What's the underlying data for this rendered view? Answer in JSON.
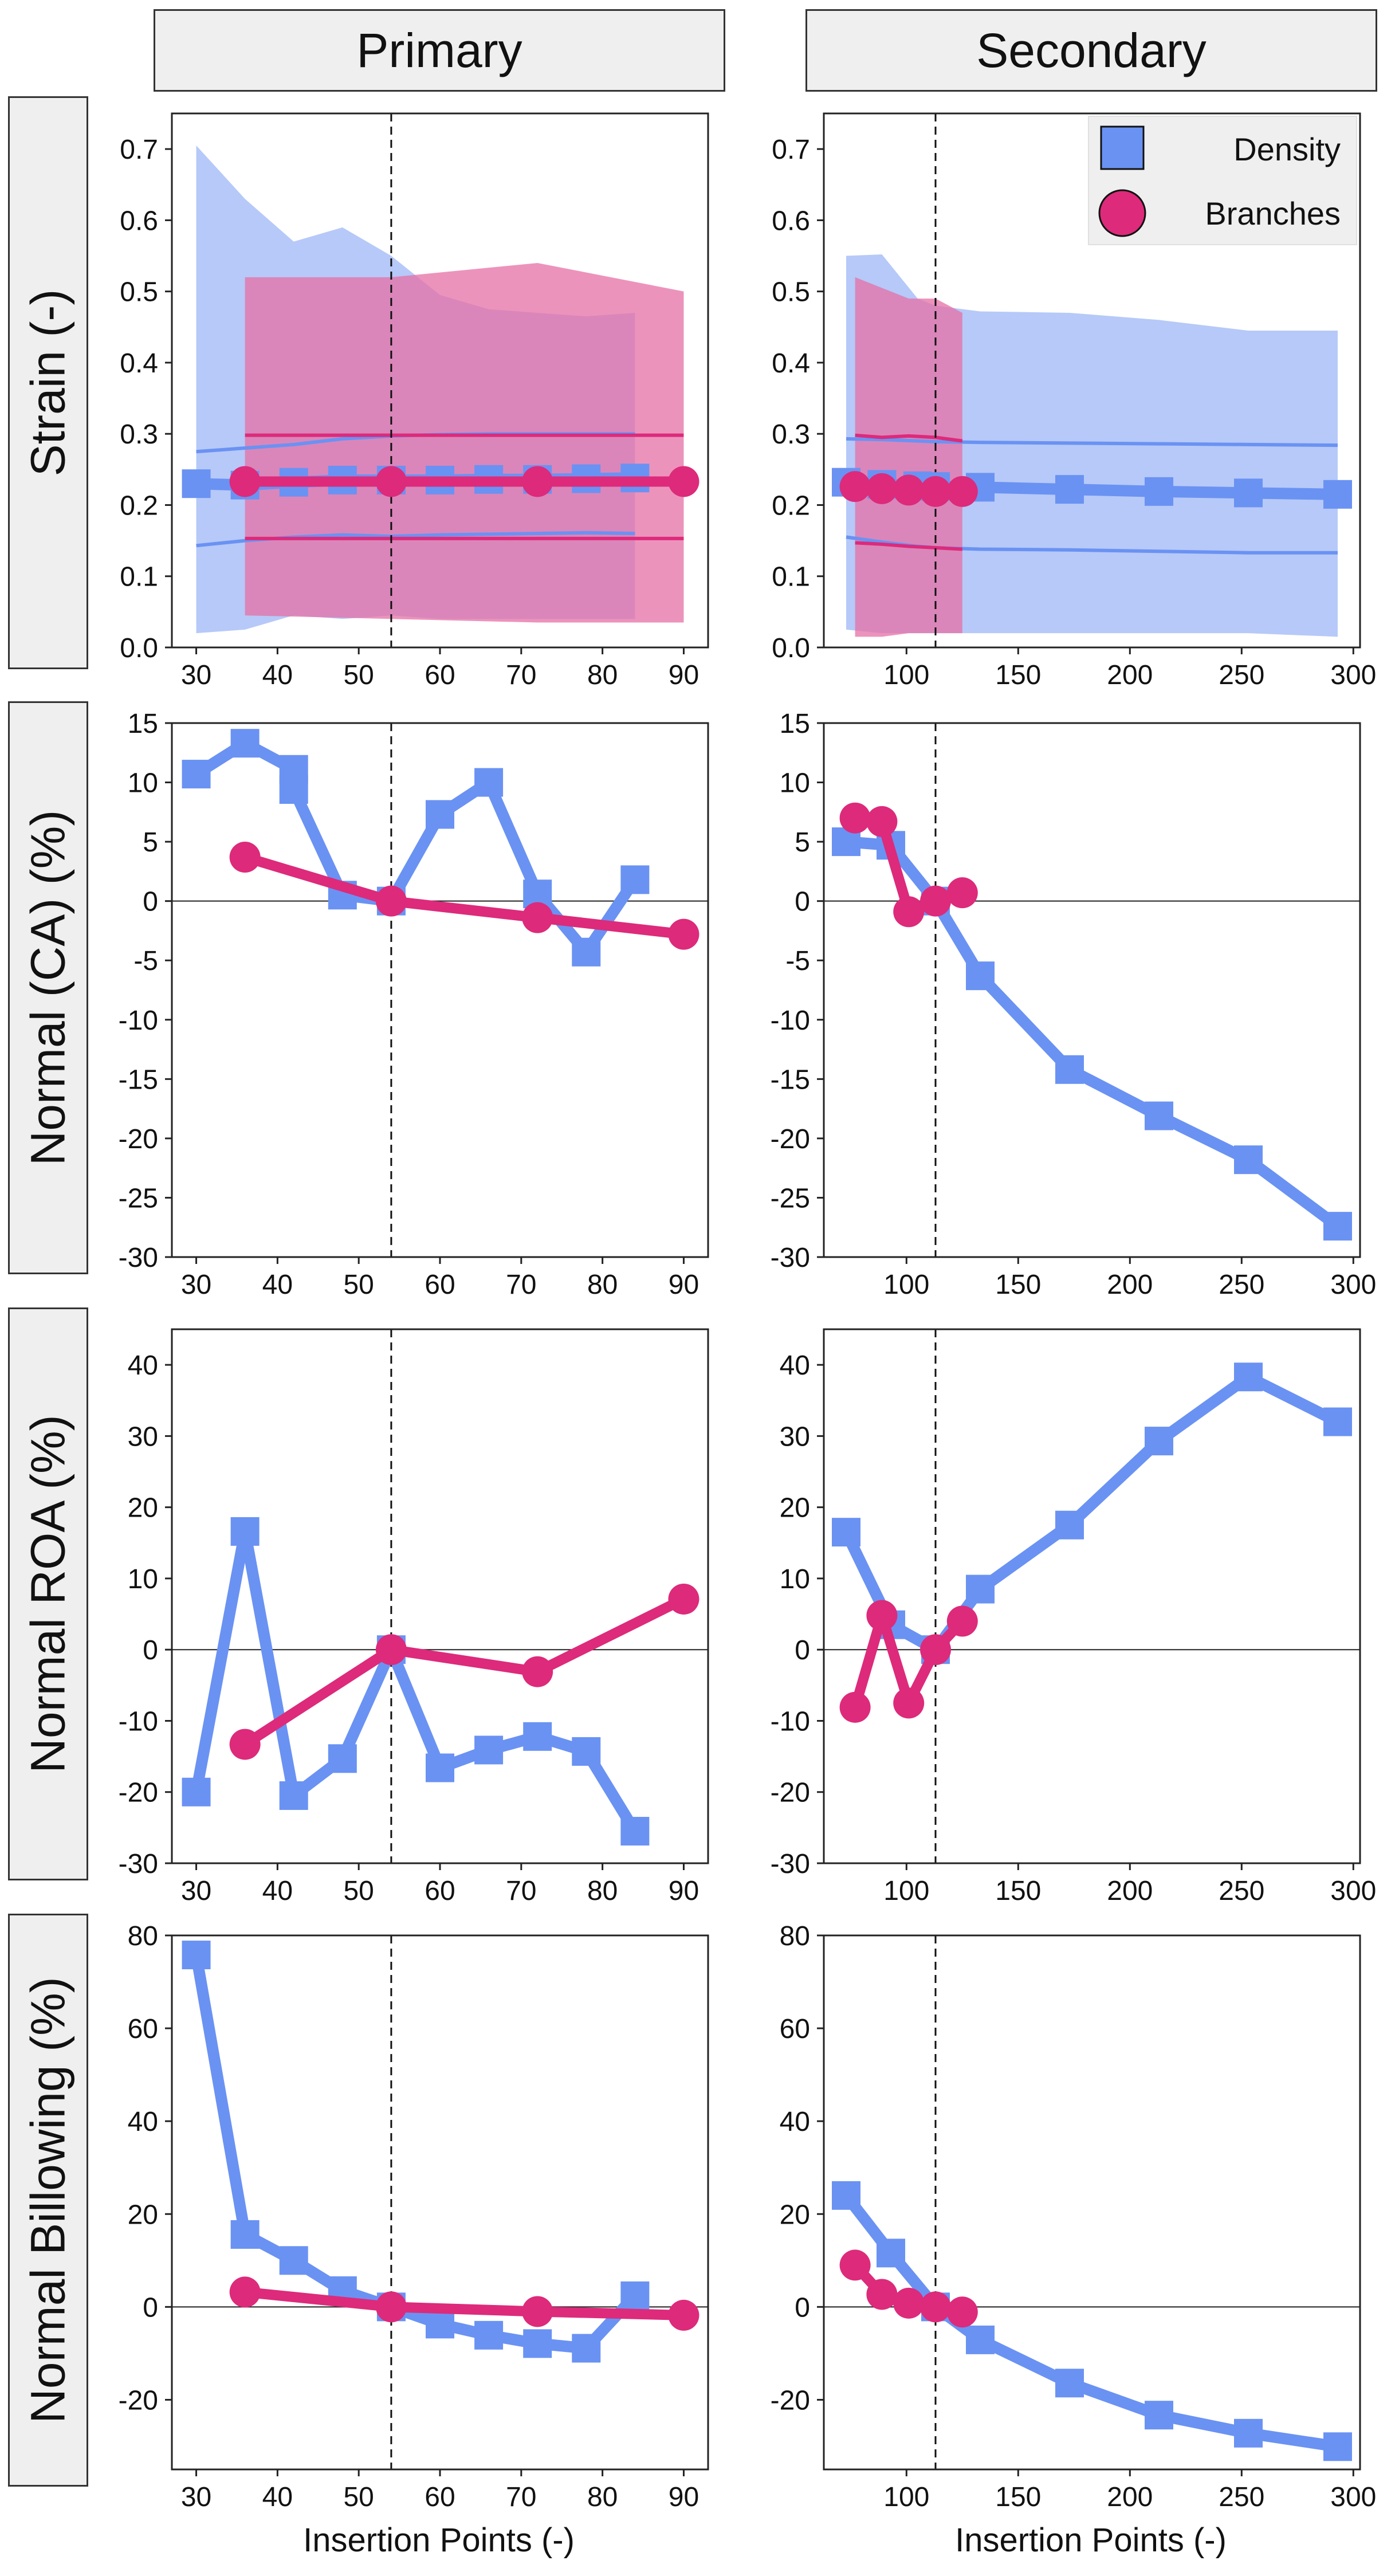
{
  "column_headers": [
    "Primary",
    "Secondary"
  ],
  "row_labels": [
    "Strain (-)",
    "Normal (CA) (%)",
    "Normal ROA (%)",
    "Normal Billowing (%)"
  ],
  "x_axis_label": "Insertion Points (-)",
  "legend": {
    "density": "Density",
    "branches": "Branches"
  },
  "colors": {
    "density": "#6a92f3",
    "branches": "#dd2a7b",
    "density_band": "#a9bff7",
    "branches_band": "#e56fa5",
    "overlap": "#c06bb9"
  },
  "chart_data": [
    {
      "type": "line",
      "row": 0,
      "col": 0,
      "title": "Primary",
      "ylabel": "Strain (-)",
      "xlabel": "",
      "xlim": [
        27,
        93
      ],
      "ylim": [
        0,
        0.75
      ],
      "xticks": [
        30,
        40,
        50,
        60,
        70,
        80,
        90
      ],
      "yticks": [
        0.0,
        0.1,
        0.2,
        0.3,
        0.4,
        0.5,
        0.6,
        0.7
      ],
      "ytick_labels": [
        "0.0",
        "0.1",
        "0.2",
        "0.3",
        "0.4",
        "0.5",
        "0.6",
        "0.7"
      ],
      "vline": 54,
      "hline": null,
      "series": [
        {
          "name": "Density",
          "x": [
            30,
            36,
            42,
            48,
            54,
            60,
            66,
            72,
            78,
            84
          ],
          "y": [
            0.23,
            0.228,
            0.232,
            0.235,
            0.235,
            0.235,
            0.236,
            0.236,
            0.237,
            0.238
          ],
          "band": {
            "upper": [
              0.705,
              0.63,
              0.57,
              0.59,
              0.55,
              0.495,
              0.475,
              0.47,
              0.465,
              0.47
            ],
            "lower": [
              0.02,
              0.025,
              0.045,
              0.04,
              0.045,
              0.04,
              0.04,
              0.04,
              0.04,
              0.04
            ],
            "std_upper": [
              0.275,
              0.28,
              0.285,
              0.293,
              0.297,
              0.299,
              0.3,
              0.3,
              0.3,
              0.3
            ],
            "std_lower": [
              0.143,
              0.15,
              0.155,
              0.158,
              0.156,
              0.158,
              0.159,
              0.16,
              0.161,
              0.16
            ]
          }
        },
        {
          "name": "Branches",
          "x": [
            36,
            54,
            72,
            90
          ],
          "y": [
            0.233,
            0.233,
            0.233,
            0.233
          ],
          "band": {
            "upper": [
              0.52,
              0.52,
              0.54,
              0.5
            ],
            "lower": [
              0.045,
              0.04,
              0.035,
              0.035
            ],
            "std_upper": [
              0.298,
              0.298,
              0.298,
              0.298
            ],
            "std_lower": [
              0.153,
              0.153,
              0.153,
              0.153
            ]
          }
        }
      ]
    },
    {
      "type": "line",
      "row": 0,
      "col": 1,
      "title": "Secondary",
      "ylabel": "",
      "xlabel": "",
      "xlim": [
        63,
        303
      ],
      "ylim": [
        0,
        0.75
      ],
      "xticks": [
        100,
        150,
        200,
        250,
        300
      ],
      "yticks": [
        0.0,
        0.1,
        0.2,
        0.3,
        0.4,
        0.5,
        0.6,
        0.7
      ],
      "ytick_labels": [
        "0.0",
        "0.1",
        "0.2",
        "0.3",
        "0.4",
        "0.5",
        "0.6",
        "0.7"
      ],
      "vline": 113,
      "hline": null,
      "legend": true,
      "series": [
        {
          "name": "Density",
          "x": [
            73,
            89,
            105,
            113,
            133,
            173,
            213,
            253,
            293
          ],
          "y": [
            0.232,
            0.229,
            0.227,
            0.226,
            0.225,
            0.222,
            0.219,
            0.217,
            0.215
          ],
          "band": {
            "upper": [
              0.55,
              0.552,
              0.49,
              0.48,
              0.472,
              0.47,
              0.46,
              0.445,
              0.445
            ],
            "lower": [
              0.025,
              0.02,
              0.02,
              0.02,
              0.02,
              0.02,
              0.02,
              0.02,
              0.015
            ],
            "std_upper": [
              0.293,
              0.292,
              0.29,
              0.289,
              0.288,
              0.287,
              0.286,
              0.285,
              0.284
            ],
            "std_lower": [
              0.155,
              0.148,
              0.142,
              0.14,
              0.138,
              0.137,
              0.135,
              0.133,
              0.133
            ]
          }
        },
        {
          "name": "Branches",
          "x": [
            77,
            89,
            101,
            113,
            125
          ],
          "y": [
            0.226,
            0.223,
            0.221,
            0.219,
            0.219
          ],
          "band": {
            "upper": [
              0.52,
              0.505,
              0.49,
              0.49,
              0.47
            ],
            "lower": [
              0.015,
              0.015,
              0.02,
              0.02,
              0.02
            ],
            "std_upper": [
              0.298,
              0.295,
              0.297,
              0.295,
              0.29
            ],
            "std_lower": [
              0.147,
              0.145,
              0.142,
              0.14,
              0.138
            ]
          }
        }
      ]
    },
    {
      "type": "line",
      "row": 1,
      "col": 0,
      "ylabel": "Normal (CA) (%)",
      "xlabel": "",
      "xlim": [
        27,
        93
      ],
      "ylim": [
        -30,
        15
      ],
      "xticks": [
        30,
        40,
        50,
        60,
        70,
        80,
        90
      ],
      "yticks": [
        -30,
        -25,
        -20,
        -15,
        -10,
        -5,
        0,
        5,
        10,
        15
      ],
      "ytick_labels": [
        "-30",
        "-25",
        "-20",
        "-15",
        "-10",
        "-5",
        "0",
        "5",
        "10",
        "15"
      ],
      "vline": 54,
      "hline": 0,
      "series": [
        {
          "name": "Density",
          "x": [
            30,
            36,
            42,
            42,
            48,
            54,
            60,
            66,
            72,
            78,
            84
          ],
          "y": [
            10.7,
            13.3,
            11.1,
            9.4,
            0.5,
            0,
            7.3,
            10,
            0.6,
            -4.3,
            1.8
          ]
        },
        {
          "name": "Branches",
          "x": [
            36,
            54,
            72,
            90
          ],
          "y": [
            3.7,
            0,
            -1.4,
            -2.8
          ]
        }
      ]
    },
    {
      "type": "line",
      "row": 1,
      "col": 1,
      "ylabel": "",
      "xlabel": "",
      "xlim": [
        63,
        303
      ],
      "ylim": [
        -30,
        15
      ],
      "xticks": [
        100,
        150,
        200,
        250,
        300
      ],
      "yticks": [
        -30,
        -25,
        -20,
        -15,
        -10,
        -5,
        0,
        5,
        10,
        15
      ],
      "ytick_labels": [
        "-30",
        "-25",
        "-20",
        "-15",
        "-10",
        "-5",
        "0",
        "5",
        "10",
        "15"
      ],
      "vline": 113,
      "hline": 0,
      "series": [
        {
          "name": "Density",
          "x": [
            73,
            93,
            113,
            133,
            173,
            213,
            253,
            293
          ],
          "y": [
            5,
            4.7,
            0,
            -6.3,
            -14.2,
            -18.1,
            -21.8,
            -27.4
          ]
        },
        {
          "name": "Branches",
          "x": [
            77,
            89,
            101,
            113,
            125
          ],
          "y": [
            7,
            6.7,
            -0.9,
            0,
            0.7
          ]
        }
      ]
    },
    {
      "type": "line",
      "row": 2,
      "col": 0,
      "ylabel": "Normal ROA (%)",
      "xlabel": "",
      "xlim": [
        27,
        93
      ],
      "ylim": [
        -30,
        45
      ],
      "xticks": [
        30,
        40,
        50,
        60,
        70,
        80,
        90
      ],
      "yticks": [
        -30,
        -20,
        -10,
        0,
        10,
        20,
        30,
        40
      ],
      "ytick_labels": [
        "-30",
        "-20",
        "-10",
        "0",
        "10",
        "20",
        "30",
        "40"
      ],
      "vline": 54,
      "hline": 0,
      "series": [
        {
          "name": "Density",
          "x": [
            30,
            36,
            42,
            48,
            54,
            60,
            66,
            72,
            78,
            84
          ],
          "y": [
            -20,
            16.6,
            -20.5,
            -15.3,
            0,
            -16.6,
            -14.1,
            -12.2,
            -14.3,
            -25.5
          ]
        },
        {
          "name": "Branches",
          "x": [
            36,
            54,
            72,
            90
          ],
          "y": [
            -13.3,
            0,
            -3.1,
            7.1
          ]
        }
      ]
    },
    {
      "type": "line",
      "row": 2,
      "col": 1,
      "ylabel": "",
      "xlabel": "",
      "xlim": [
        63,
        303
      ],
      "ylim": [
        -30,
        45
      ],
      "xticks": [
        100,
        150,
        200,
        250,
        300
      ],
      "yticks": [
        -30,
        -20,
        -10,
        0,
        10,
        20,
        30,
        40
      ],
      "ytick_labels": [
        "-30",
        "-20",
        "-10",
        "0",
        "10",
        "20",
        "30",
        "40"
      ],
      "vline": 113,
      "hline": 0,
      "series": [
        {
          "name": "Density",
          "x": [
            73,
            93,
            113,
            133,
            173,
            213,
            253,
            293
          ],
          "y": [
            16.5,
            3.5,
            0,
            8.5,
            17.5,
            29.3,
            38.3,
            32
          ]
        },
        {
          "name": "Branches",
          "x": [
            77,
            89,
            101,
            113,
            125
          ],
          "y": [
            -8.1,
            4.8,
            -7.5,
            0,
            4
          ]
        }
      ]
    },
    {
      "type": "line",
      "row": 3,
      "col": 0,
      "ylabel": "Normal Billowing (%)",
      "xlabel": "Insertion Points (-)",
      "xlim": [
        27,
        93
      ],
      "ylim": [
        -35,
        80
      ],
      "xticks": [
        30,
        40,
        50,
        60,
        70,
        80,
        90
      ],
      "yticks": [
        -20,
        0,
        20,
        40,
        60,
        80
      ],
      "ytick_labels": [
        "-20",
        "0",
        "20",
        "40",
        "60",
        "80"
      ],
      "vline": 54,
      "hline": 0,
      "series": [
        {
          "name": "Density",
          "x": [
            30,
            36,
            42,
            48,
            54,
            60,
            66,
            72,
            78,
            84
          ],
          "y": [
            75.8,
            15.6,
            10,
            3.5,
            0,
            -3.7,
            -6.1,
            -7.9,
            -8.9,
            2.4
          ]
        },
        {
          "name": "Branches",
          "x": [
            36,
            54,
            72,
            90
          ],
          "y": [
            3.2,
            0,
            -1,
            -1.8
          ]
        }
      ]
    },
    {
      "type": "line",
      "row": 3,
      "col": 1,
      "ylabel": "",
      "xlabel": "Insertion Points (-)",
      "xlim": [
        63,
        303
      ],
      "ylim": [
        -35,
        80
      ],
      "xticks": [
        100,
        150,
        200,
        250,
        300
      ],
      "yticks": [
        -20,
        0,
        20,
        40,
        60,
        80
      ],
      "ytick_labels": [
        "-20",
        "0",
        "20",
        "40",
        "60",
        "80"
      ],
      "vline": 113,
      "hline": 0,
      "series": [
        {
          "name": "Density",
          "x": [
            73,
            93,
            113,
            133,
            173,
            213,
            253,
            293
          ],
          "y": [
            24,
            11.6,
            0,
            -7.1,
            -16.4,
            -23.3,
            -27.2,
            -30.1
          ]
        },
        {
          "name": "Branches",
          "x": [
            77,
            89,
            101,
            113,
            125
          ],
          "y": [
            9,
            2.7,
            0.8,
            0,
            -1.1
          ]
        }
      ]
    }
  ]
}
